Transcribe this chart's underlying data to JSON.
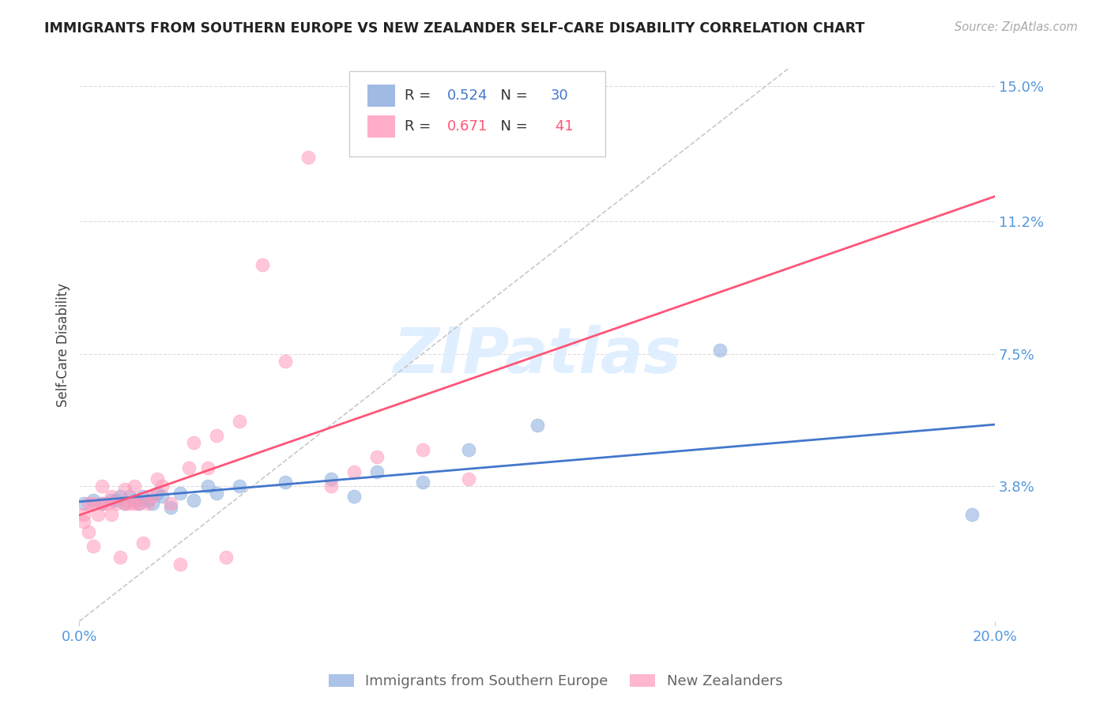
{
  "title": "IMMIGRANTS FROM SOUTHERN EUROPE VS NEW ZEALANDER SELF-CARE DISABILITY CORRELATION CHART",
  "source": "Source: ZipAtlas.com",
  "ylabel": "Self-Care Disability",
  "xlim": [
    0.0,
    0.2
  ],
  "ylim": [
    0.0,
    0.155
  ],
  "legend_blue_R": "0.524",
  "legend_blue_N": "30",
  "legend_pink_R": "0.671",
  "legend_pink_N": "41",
  "blue_scatter_color": "#88AADD",
  "pink_scatter_color": "#FF99BB",
  "blue_line_color": "#4477CC",
  "pink_line_color": "#FF5577",
  "axis_tick_color": "#5599DD",
  "grid_color": "#DDDDDD",
  "watermark_text": "ZIPatlas",
  "watermark_color": "#DDEEFF",
  "blue_scatter_x": [
    0.001,
    0.003,
    0.005,
    0.007,
    0.008,
    0.009,
    0.01,
    0.011,
    0.012,
    0.013,
    0.014,
    0.015,
    0.016,
    0.017,
    0.018,
    0.02,
    0.022,
    0.025,
    0.028,
    0.03,
    0.035,
    0.045,
    0.055,
    0.06,
    0.065,
    0.075,
    0.085,
    0.1,
    0.14,
    0.195
  ],
  "blue_scatter_y": [
    0.033,
    0.034,
    0.033,
    0.034,
    0.034,
    0.035,
    0.033,
    0.035,
    0.034,
    0.033,
    0.035,
    0.034,
    0.033,
    0.036,
    0.035,
    0.032,
    0.036,
    0.034,
    0.038,
    0.036,
    0.038,
    0.039,
    0.04,
    0.035,
    0.042,
    0.039,
    0.048,
    0.055,
    0.076,
    0.03
  ],
  "pink_scatter_x": [
    0.001,
    0.001,
    0.002,
    0.002,
    0.003,
    0.003,
    0.004,
    0.005,
    0.005,
    0.006,
    0.007,
    0.007,
    0.008,
    0.009,
    0.01,
    0.01,
    0.011,
    0.012,
    0.012,
    0.013,
    0.014,
    0.015,
    0.016,
    0.017,
    0.018,
    0.02,
    0.022,
    0.024,
    0.025,
    0.028,
    0.03,
    0.032,
    0.035,
    0.04,
    0.045,
    0.05,
    0.055,
    0.06,
    0.065,
    0.075,
    0.085
  ],
  "pink_scatter_y": [
    0.03,
    0.028,
    0.033,
    0.025,
    0.033,
    0.021,
    0.03,
    0.033,
    0.038,
    0.033,
    0.035,
    0.03,
    0.033,
    0.018,
    0.033,
    0.037,
    0.033,
    0.033,
    0.038,
    0.033,
    0.022,
    0.033,
    0.035,
    0.04,
    0.038,
    0.033,
    0.016,
    0.043,
    0.05,
    0.043,
    0.052,
    0.018,
    0.056,
    0.1,
    0.073,
    0.13,
    0.038,
    0.042,
    0.046,
    0.048,
    0.04
  ],
  "ytick_positions": [
    0.038,
    0.075,
    0.112,
    0.15
  ],
  "ytick_labels": [
    "3.8%",
    "7.5%",
    "11.2%",
    "15.0%"
  ],
  "xtick_positions": [
    0.0,
    0.2
  ],
  "xtick_labels": [
    "0.0%",
    "20.0%"
  ]
}
